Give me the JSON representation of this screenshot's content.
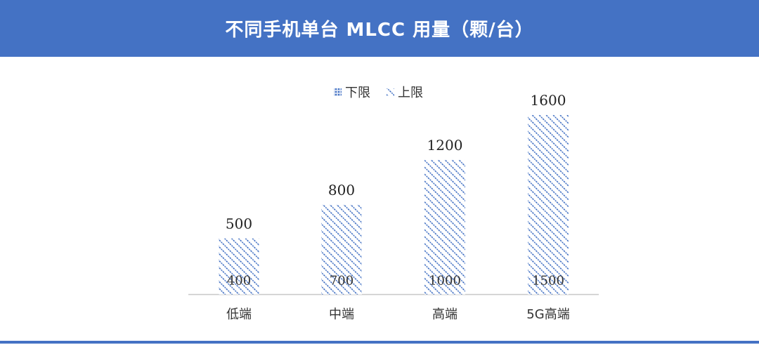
{
  "header": {
    "title": "不同手机单台 MLCC 用量（颗/台）"
  },
  "colors": {
    "header_bg": "#4472c4",
    "bar_pattern": "#4472c4"
  },
  "chart_data": {
    "type": "bar",
    "title": "",
    "categories": [
      "低端",
      "中端",
      "高端",
      "5G高端"
    ],
    "series": [
      {
        "name": "下限",
        "values": [
          400,
          700,
          1000,
          1500
        ]
      },
      {
        "name": "上限",
        "values": [
          500,
          800,
          1200,
          1600
        ]
      }
    ],
    "ylim": [
      0,
      1800
    ],
    "xlabel": "",
    "ylabel": "",
    "grid": false,
    "legend": "top-center"
  }
}
